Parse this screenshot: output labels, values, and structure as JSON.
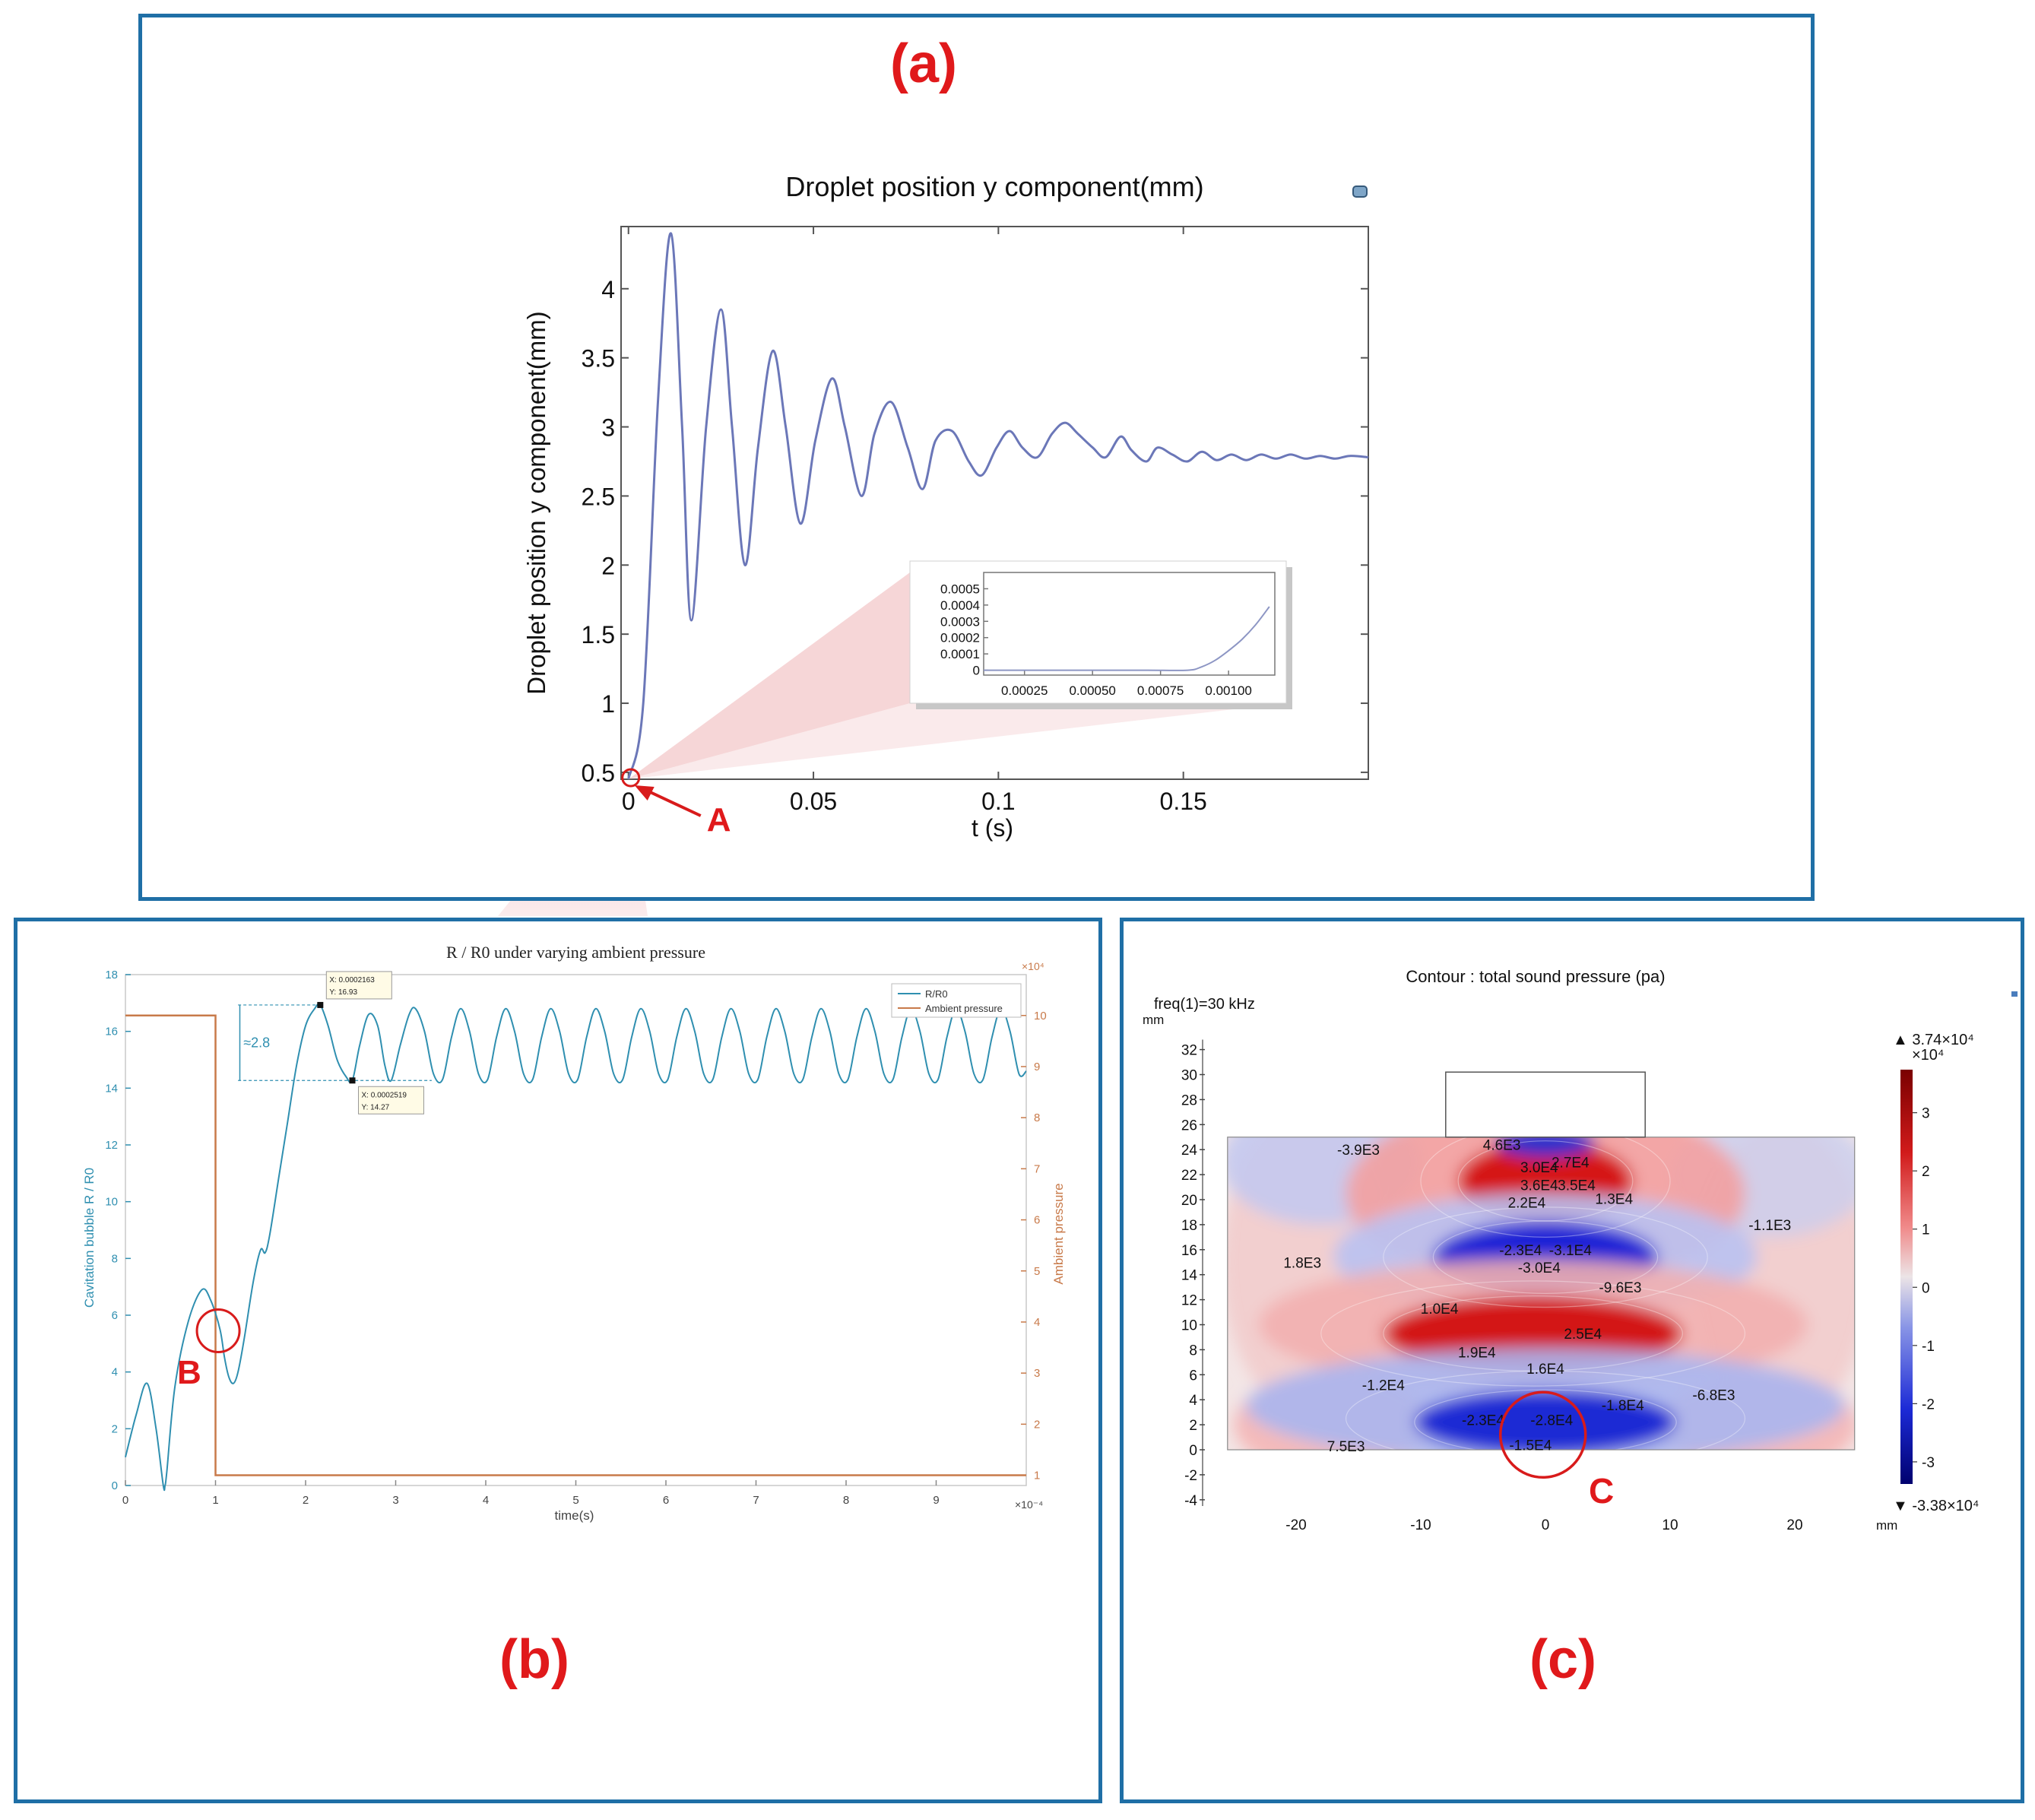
{
  "panel_labels": {
    "a": "(a)",
    "b": "(b)",
    "c": "(c)"
  },
  "colors": {
    "panel_border": "#1f6fa6",
    "label_red": "#e0191b",
    "curve_a": "#6b77b8",
    "curve_b": "#2f8fb0",
    "ambient": "#c87a4a"
  },
  "chart_data": [
    {
      "id": "a",
      "type": "line",
      "title": "Droplet position y component(mm)",
      "xlabel": "t (s)",
      "ylabel": "Droplet position y component(mm)",
      "xlim": [
        -0.002,
        0.2
      ],
      "ylim": [
        0.45,
        4.45
      ],
      "xticks": [
        0,
        0.05,
        0.1,
        0.15
      ],
      "xtick_labels": [
        "0",
        "0.05",
        "0.1",
        "0.15"
      ],
      "yticks": [
        0.5,
        1,
        1.5,
        2,
        2.5,
        3,
        3.5,
        4
      ],
      "ytick_labels": [
        "0.5",
        "1",
        "1.5",
        "2",
        "2.5",
        "3",
        "3.5",
        "4"
      ],
      "series": [
        {
          "values_x": [
            0,
            0.004,
            0.008,
            0.0115,
            0.0145,
            0.017,
            0.021,
            0.025,
            0.028,
            0.0315,
            0.035,
            0.039,
            0.0425,
            0.0465,
            0.0505,
            0.055,
            0.0585,
            0.063,
            0.0665,
            0.071,
            0.0755,
            0.0795,
            0.083,
            0.0875,
            0.092,
            0.0955,
            0.0995,
            0.103,
            0.1065,
            0.1105,
            0.1145,
            0.118,
            0.1215,
            0.1255,
            0.129,
            0.133,
            0.136,
            0.14,
            0.143,
            0.147,
            0.151,
            0.155,
            0.159,
            0.163,
            0.167,
            0.171,
            0.175,
            0.179,
            0.183,
            0.187,
            0.191,
            0.195,
            0.2
          ],
          "values_y": [
            0.45,
            1.0,
            3.2,
            4.4,
            3.0,
            1.6,
            3.0,
            3.85,
            3.0,
            2.0,
            2.85,
            3.55,
            3.0,
            2.3,
            2.9,
            3.35,
            3.0,
            2.5,
            2.95,
            3.18,
            2.85,
            2.55,
            2.9,
            2.97,
            2.75,
            2.65,
            2.85,
            2.97,
            2.85,
            2.78,
            2.95,
            3.03,
            2.95,
            2.85,
            2.78,
            2.93,
            2.83,
            2.75,
            2.85,
            2.8,
            2.75,
            2.82,
            2.76,
            2.8,
            2.76,
            2.8,
            2.77,
            2.8,
            2.77,
            2.79,
            2.77,
            2.79,
            2.78
          ]
        }
      ],
      "marker_label": "A",
      "inset": {
        "type": "line",
        "xlim": [
          0.0001,
          0.00117
        ],
        "ylim": [
          -3e-05,
          0.0006
        ],
        "xtick_labels": [
          "0.00025",
          "0.00050",
          "0.00075",
          "0.00100"
        ],
        "xticks": [
          0.00025,
          0.0005,
          0.00075,
          0.001
        ],
        "ytick_labels": [
          "0",
          "0.0001",
          "0.0002",
          "0.0003",
          "0.0004",
          "0.0005"
        ],
        "yticks": [
          0,
          0.0001,
          0.0002,
          0.0003,
          0.0004,
          0.0005
        ],
        "x": [
          0.0001,
          0.0003,
          0.0005,
          0.0007,
          0.00085,
          0.0009,
          0.00095,
          0.001,
          0.00105,
          0.0011,
          0.00115
        ],
        "y": [
          0,
          0,
          0,
          0,
          0,
          2e-05,
          6e-05,
          0.00012,
          0.00019,
          0.00028,
          0.00039
        ]
      }
    },
    {
      "id": "b",
      "type": "line",
      "title": "R / R0 under varying ambient pressure",
      "xlabel": "time(s)",
      "x_multiplier": "×10⁻⁴",
      "ylabel_left": "Cavitation bubble R / R0",
      "ylabel_right": "Ambient pressure",
      "right_multiplier": "×10⁴",
      "xlim": [
        0,
        10
      ],
      "ylim_left": [
        0,
        18
      ],
      "ylim_right": [
        0.8,
        10.8
      ],
      "xticks": [
        0,
        1,
        2,
        3,
        4,
        5,
        6,
        7,
        8,
        9
      ],
      "xtick_labels": [
        "0",
        "1",
        "2",
        "3",
        "4",
        "5",
        "6",
        "7",
        "8",
        "9"
      ],
      "yticks_left": [
        0,
        2,
        4,
        6,
        8,
        10,
        12,
        14,
        16,
        18
      ],
      "ytick_labels_left": [
        "0",
        "2",
        "4",
        "6",
        "8",
        "10",
        "12",
        "14",
        "16",
        "18"
      ],
      "yticks_right": [
        1,
        2,
        3,
        4,
        5,
        6,
        7,
        8,
        9,
        10
      ],
      "ytick_labels_right": [
        "1",
        "2",
        "3",
        "4",
        "5",
        "6",
        "7",
        "8",
        "9",
        "10"
      ],
      "legend": [
        "R/R0",
        "Ambient pressure"
      ],
      "legend_position": "top-right",
      "series": [
        {
          "name": "R/R0",
          "x": [
            0,
            0.12,
            0.24,
            0.34,
            0.42,
            0.44,
            0.46,
            0.55,
            0.7,
            0.85,
            0.95,
            1.05,
            1.1,
            1.15,
            1.2,
            1.25,
            1.32,
            1.42,
            1.5,
            1.55,
            1.6,
            1.7,
            1.8,
            1.9,
            2.0,
            2.1,
            2.163,
            2.25,
            2.35,
            2.45,
            2.519,
            2.6,
            2.7,
            2.8,
            2.88,
            2.95,
            3.05,
            3.15,
            3.22,
            3.32,
            3.42,
            3.52,
            3.62,
            3.72,
            3.82,
            3.92,
            4.02,
            4.12,
            4.22,
            4.32,
            4.42,
            4.52,
            4.62,
            4.72,
            4.82,
            4.92,
            5.02,
            5.12,
            5.22,
            5.32,
            5.42,
            5.52,
            5.62,
            5.72,
            5.82,
            5.92,
            6.02,
            6.12,
            6.22,
            6.32,
            6.42,
            6.52,
            6.62,
            6.72,
            6.82,
            6.92,
            7.02,
            7.12,
            7.22,
            7.32,
            7.42,
            7.52,
            7.62,
            7.72,
            7.82,
            7.92,
            8.02,
            8.12,
            8.22,
            8.32,
            8.42,
            8.52,
            8.62,
            8.72,
            8.82,
            8.92,
            9.02,
            9.12,
            9.22,
            9.32,
            9.42,
            9.52,
            9.62,
            9.72,
            9.82,
            9.92,
            10.0
          ],
          "y": [
            1.0,
            2.5,
            3.6,
            2.0,
            0.0,
            0.0,
            0.5,
            3.5,
            5.8,
            6.9,
            6.5,
            5.5,
            4.5,
            3.8,
            3.6,
            4.0,
            5.2,
            7.2,
            8.3,
            8.2,
            8.8,
            10.8,
            12.8,
            14.8,
            16.2,
            16.8,
            16.93,
            16.2,
            15.0,
            14.4,
            14.27,
            15.5,
            16.6,
            16.2,
            14.8,
            14.27,
            15.5,
            16.6,
            16.8,
            16.0,
            14.5,
            14.3,
            15.8,
            16.8,
            16.0,
            14.5,
            14.3,
            15.8,
            16.8,
            16.0,
            14.5,
            14.3,
            15.8,
            16.8,
            16.0,
            14.5,
            14.3,
            15.8,
            16.8,
            16.0,
            14.5,
            14.3,
            15.8,
            16.8,
            16.0,
            14.5,
            14.3,
            15.8,
            16.8,
            16.0,
            14.5,
            14.3,
            15.8,
            16.8,
            16.0,
            14.5,
            14.3,
            15.8,
            16.8,
            16.0,
            14.5,
            14.3,
            15.8,
            16.8,
            16.0,
            14.5,
            14.3,
            15.8,
            16.8,
            16.0,
            14.5,
            14.3,
            15.8,
            16.8,
            16.0,
            14.5,
            14.3,
            15.8,
            16.8,
            16.0,
            14.5,
            14.3,
            15.8,
            16.8,
            16.0,
            14.5,
            14.6
          ]
        },
        {
          "name": "Ambient pressure",
          "axis": "right",
          "x": [
            0,
            1.0,
            1.0,
            10.0
          ],
          "y": [
            10.0,
            10.0,
            1.0,
            1.0
          ]
        }
      ],
      "datatips": [
        {
          "x_text": "X: 0.0002163",
          "y_text": "Y: 16.93",
          "x": 2.163,
          "y": 16.93
        },
        {
          "x_text": "X: 0.0002519",
          "y_text": "Y: 14.27",
          "x": 2.519,
          "y": 14.27
        }
      ],
      "amplitude_label": "≈2.8",
      "marker_label": "B"
    },
    {
      "id": "c",
      "type": "heatmap",
      "title": "Contour : total sound pressure (pa)",
      "subtitle": "freq(1)=30 kHz",
      "x_unit": "mm",
      "y_unit": "mm",
      "xlim": [
        -28,
        27
      ],
      "ylim": [
        -5,
        34
      ],
      "xticks": [
        -20,
        -10,
        0,
        10,
        20
      ],
      "xtick_labels": [
        "-20",
        "-10",
        "0",
        "10",
        "20"
      ],
      "yticks": [
        -4,
        -2,
        0,
        2,
        4,
        6,
        8,
        10,
        12,
        14,
        16,
        18,
        20,
        22,
        24,
        26,
        28,
        30,
        32
      ],
      "ytick_labels": [
        "-4",
        "-2",
        "0",
        "2",
        "4",
        "6",
        "8",
        "10",
        "12",
        "14",
        "16",
        "18",
        "20",
        "22",
        "24",
        "26",
        "28",
        "30",
        "32"
      ],
      "colorbar": {
        "max_label": "▲ 3.74×10⁴",
        "min_label": "▼ -3.38×10⁴",
        "multiplier": "×10⁴",
        "ticks": [
          "3",
          "2",
          "1",
          "0",
          "-1",
          "-2",
          "-3"
        ],
        "tick_values": [
          3,
          2,
          1,
          0,
          -1,
          -2,
          -3
        ],
        "range": [
          -3.38,
          3.74
        ]
      },
      "contour_labels": [
        {
          "text": "-3.9E3",
          "x": -15,
          "y": 24
        },
        {
          "text": "4.6E3",
          "x": -3.5,
          "y": 24.4
        },
        {
          "text": "2.7E4",
          "x": 2,
          "y": 23
        },
        {
          "text": "3.0E4",
          "x": -0.5,
          "y": 22.6
        },
        {
          "text": "3.6E4",
          "x": -0.5,
          "y": 21.2
        },
        {
          "text": "3.5E4",
          "x": 2.5,
          "y": 21.2
        },
        {
          "text": "1.3E4",
          "x": 5.5,
          "y": 20.1
        },
        {
          "text": "2.2E4",
          "x": -1.5,
          "y": 19.8
        },
        {
          "text": "-1.1E3",
          "x": 18,
          "y": 18
        },
        {
          "text": "-2.3E4",
          "x": -2,
          "y": 16
        },
        {
          "text": "-3.1E4",
          "x": 2,
          "y": 16
        },
        {
          "text": "-3.0E4",
          "x": -0.5,
          "y": 14.6
        },
        {
          "text": "1.8E3",
          "x": -19.5,
          "y": 15
        },
        {
          "text": "-9.6E3",
          "x": 6,
          "y": 13
        },
        {
          "text": "1.0E4",
          "x": -8.5,
          "y": 11.3
        },
        {
          "text": "2.5E4",
          "x": 3,
          "y": 9.3
        },
        {
          "text": "1.9E4",
          "x": -5.5,
          "y": 7.8
        },
        {
          "text": "1.6E4",
          "x": 0,
          "y": 6.5
        },
        {
          "text": "-1.2E4",
          "x": -13,
          "y": 5.2
        },
        {
          "text": "-6.8E3",
          "x": 13.5,
          "y": 4.4
        },
        {
          "text": "-1.8E4",
          "x": 6.2,
          "y": 3.6
        },
        {
          "text": "-2.3E4",
          "x": -5,
          "y": 2.4
        },
        {
          "text": "-2.8E4",
          "x": 0.5,
          "y": 2.4
        },
        {
          "text": "-1.5E4",
          "x": -1.2,
          "y": 0.4
        },
        {
          "text": "7.5E3",
          "x": -16,
          "y": 0.3
        }
      ],
      "marker_label": "C"
    }
  ]
}
